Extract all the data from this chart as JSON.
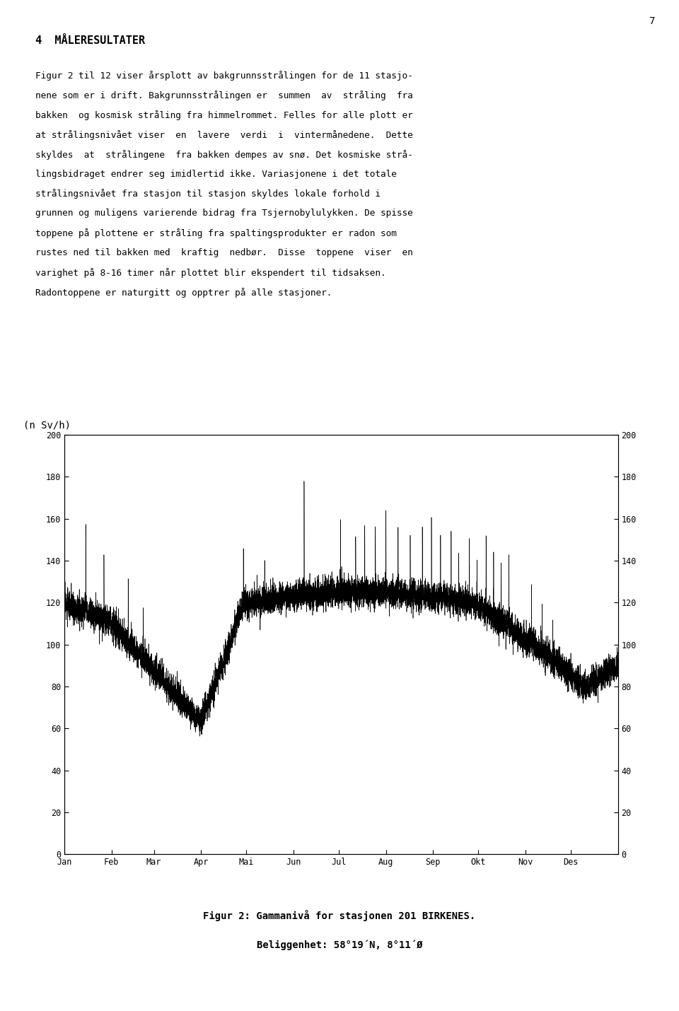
{
  "title_line1": "Figur 2: Gammanivå for stasjonen 201 BIRKENES.",
  "title_line2": "Beliggenhet: 58°19´N, 8°11´Ø",
  "ylabel_left": "(n Sv/h)",
  "xlabel_months": [
    "Jan",
    "Feb",
    "Mar",
    "Apr",
    "Mai",
    "Jun",
    "Jul",
    "Aug",
    "Sep",
    "Okt",
    "Nov",
    "Des"
  ],
  "ylim": [
    0,
    200
  ],
  "yticks_left": [
    0,
    20,
    40,
    60,
    80,
    100,
    120,
    140,
    160,
    180,
    200
  ],
  "yticks_right": [
    0,
    20,
    40,
    60,
    80,
    100,
    120,
    140,
    160,
    180,
    200
  ],
  "background_color": "#ffffff",
  "line_color": "#000000",
  "page_number": "7",
  "header_text": "4  MÅLERESULTATER",
  "body_text_lines": [
    "Figur 2 til 12 viser årsplott av bakgrunnsstrålingen for de 11 stasjo-",
    "nene som er i drift. Bakgrunnsstrålingen er  summen  av  stråling  fra",
    "bakken  og kosmisk stråling fra himmelrommet. Felles for alle plott er",
    "at strålingsnivået viser  en  lavere  verdi  i  vintermånedene.  Dette",
    "skyldes  at  strålingene  fra bakken dempes av snø. Det kosmiske strå-",
    "lingsbidraget endrer seg imidlertid ikke. Variasjonene i det totale",
    "strålingsnivået fra stasjon til stasjon skyldes lokale forhold i",
    "grunnen og muligens varierende bidrag fra Tsjernobylulykken. De spisse",
    "toppene på plottene er stråling fra spaltingsprodukter er radon som",
    "rustes ned til bakken med  kraftig  nedbør.  Disse  toppene  viser  en",
    "varighet på 8-16 timer når plottet blir ekspendert til tidsaksen.",
    "Radontoppene er naturgitt og opptrer på alle stasjoner."
  ],
  "month_day_starts": [
    0,
    31,
    59,
    90,
    120,
    151,
    181,
    212,
    243,
    273,
    304,
    334
  ]
}
